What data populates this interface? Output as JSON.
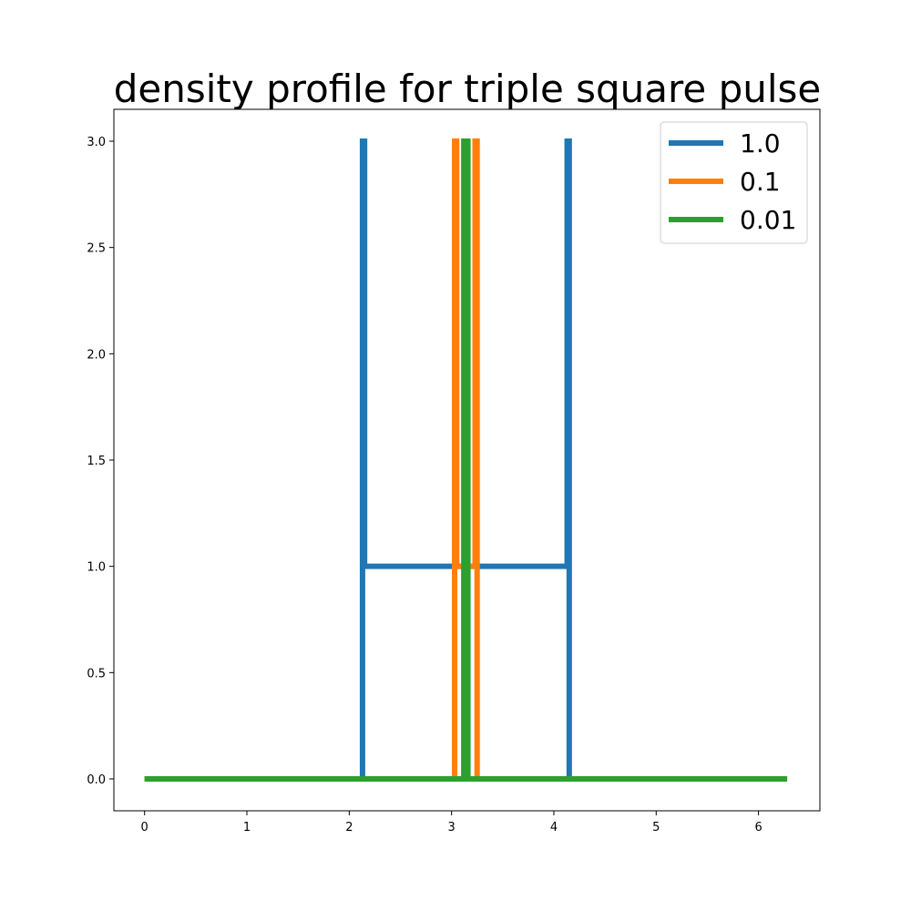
{
  "chart_data": {
    "type": "line",
    "title": "density profile for triple square pulse",
    "xlabel": "",
    "ylabel": "",
    "xlim": [
      -0.3,
      6.6
    ],
    "ylim": [
      -0.15,
      3.15
    ],
    "xticks": [
      0,
      1,
      2,
      3,
      4,
      5,
      6
    ],
    "yticks": [
      0.0,
      0.5,
      1.0,
      1.5,
      2.0,
      2.5,
      3.0
    ],
    "xtick_labels": [
      "0",
      "1",
      "2",
      "3",
      "4",
      "5",
      "6"
    ],
    "ytick_labels": [
      "0.0",
      "0.5",
      "1.0",
      "1.5",
      "2.0",
      "2.5",
      "3.0"
    ],
    "grid": false,
    "legend_position": "top-right",
    "series": [
      {
        "name": "1.0",
        "color": "#1f77b4",
        "points": [
          [
            0,
            0
          ],
          [
            2.13,
            0
          ],
          [
            2.13,
            3.0
          ],
          [
            2.15,
            3.0
          ],
          [
            2.15,
            1.0
          ],
          [
            4.13,
            1.0
          ],
          [
            4.13,
            3.0
          ],
          [
            4.15,
            3.0
          ],
          [
            4.15,
            0
          ],
          [
            6.28,
            0
          ]
        ]
      },
      {
        "name": "0.1",
        "color": "#ff7f0e",
        "points": [
          [
            0,
            0
          ],
          [
            3.03,
            0
          ],
          [
            3.03,
            3.0
          ],
          [
            3.05,
            3.0
          ],
          [
            3.05,
            1.0
          ],
          [
            3.23,
            1.0
          ],
          [
            3.23,
            3.0
          ],
          [
            3.25,
            3.0
          ],
          [
            3.25,
            0
          ],
          [
            6.28,
            0
          ]
        ]
      },
      {
        "name": "0.01",
        "color": "#2ca02c",
        "points": [
          [
            0,
            0
          ],
          [
            3.12,
            0
          ],
          [
            3.12,
            3.0
          ],
          [
            3.13,
            3.0
          ],
          [
            3.13,
            1.0
          ],
          [
            3.15,
            1.0
          ],
          [
            3.15,
            3.0
          ],
          [
            3.16,
            3.0
          ],
          [
            3.16,
            0
          ],
          [
            6.28,
            0
          ]
        ]
      }
    ]
  }
}
